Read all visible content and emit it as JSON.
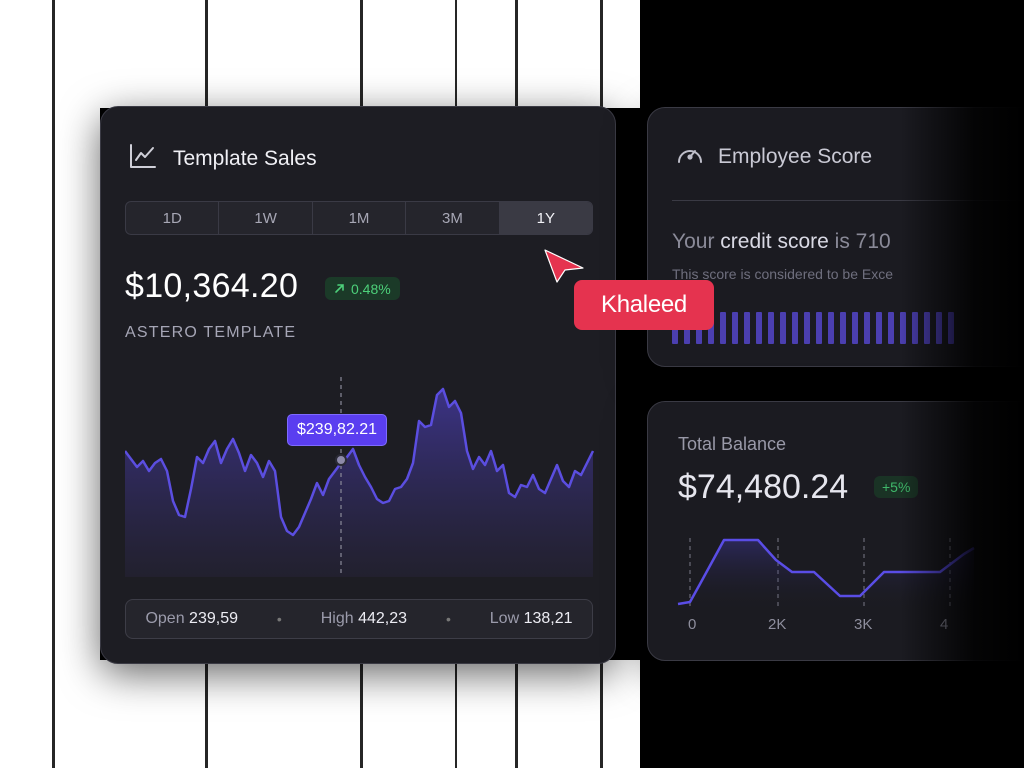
{
  "colors": {
    "accent": "#5a3ef0",
    "line": "#5b4ee0",
    "positive": "#4dd07a",
    "cursor": "#e5334f",
    "card_bg": "#1d1d23"
  },
  "sales_card": {
    "icon": "line-chart-icon",
    "title": "Template Sales",
    "tabs": [
      "1D",
      "1W",
      "1M",
      "3M",
      "1Y"
    ],
    "active_tab": "1Y",
    "amount": "$10,364.20",
    "change": "0.48%",
    "change_icon": "arrow-up-right-icon",
    "subtitle": "ASTERO  TEMPLATE",
    "tooltip": "$239,82.21",
    "stats": {
      "open_label": "Open",
      "open_value": "239,59",
      "high_label": "High",
      "high_value": "442,23",
      "low_label": "Low",
      "low_value": "138,21"
    }
  },
  "employee_card": {
    "icon": "gauge-icon",
    "title": "Employee Score",
    "credit_prefix": "Your ",
    "credit_bold": "credit score",
    "credit_suffix": " is 710",
    "credit_sub": "This score is considered to be Exce"
  },
  "balance_card": {
    "title": "Total Balance",
    "amount": "$74,480.24",
    "change": "+5%",
    "x_ticks": [
      "0",
      "2K",
      "3K",
      "4"
    ]
  },
  "cursor": {
    "icon": "pointer-cursor-icon",
    "name": "Khaleed"
  }
}
